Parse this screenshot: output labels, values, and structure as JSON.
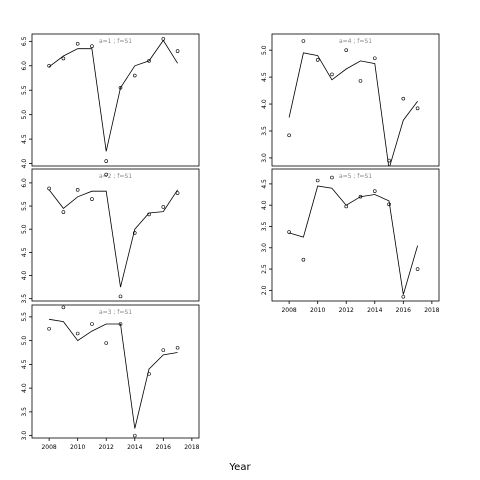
{
  "chart_data": {
    "type": "line",
    "xlabel": "Year",
    "ylabel": "",
    "title": "",
    "panels": [
      {
        "label": "a=1 ; f=S1",
        "xlim": [
          2006.8,
          2018.5
        ],
        "ylim": [
          3.95,
          6.65
        ],
        "yticks": [
          "4.0",
          "4.5",
          "5.0",
          "5.5",
          "6.0",
          "6.5"
        ],
        "xticks": [],
        "x": [
          2008,
          2009,
          2010,
          2011,
          2012,
          2013,
          2014,
          2015,
          2016,
          2017
        ],
        "fitted": [
          5.98,
          6.2,
          6.35,
          6.35,
          4.25,
          5.55,
          6.0,
          6.1,
          6.52,
          6.05
        ],
        "observed": [
          6.0,
          6.15,
          6.45,
          6.4,
          4.05,
          5.55,
          5.8,
          6.1,
          6.55,
          6.3
        ]
      },
      {
        "label": "a=2 ; f=S1",
        "xlim": [
          2006.8,
          2018.5
        ],
        "ylim": [
          3.45,
          6.3
        ],
        "yticks": [
          "3.5",
          "4.0",
          "4.5",
          "5.0",
          "5.5",
          "6.0"
        ],
        "xticks": [],
        "x": [
          2008,
          2009,
          2010,
          2011,
          2012,
          2013,
          2014,
          2015,
          2016,
          2017
        ],
        "fitted": [
          5.85,
          5.45,
          5.7,
          5.82,
          5.82,
          3.75,
          5.0,
          5.35,
          5.38,
          5.85
        ],
        "observed": [
          5.88,
          5.37,
          5.85,
          5.65,
          6.18,
          3.55,
          4.92,
          5.32,
          5.48,
          5.78
        ]
      },
      {
        "label": "a=3 ; f=S1",
        "xlim": [
          2006.8,
          2018.5
        ],
        "ylim": [
          2.95,
          5.75
        ],
        "yticks": [
          "3.0",
          "3.5",
          "4.0",
          "4.5",
          "5.0",
          "5.5"
        ],
        "xticks": [
          "2008",
          "2010",
          "2012",
          "2014",
          "2016",
          "2018"
        ],
        "x": [
          2008,
          2009,
          2010,
          2011,
          2012,
          2013,
          2014,
          2015,
          2016,
          2017
        ],
        "fitted": [
          5.45,
          5.4,
          5.0,
          5.2,
          5.35,
          5.35,
          3.15,
          4.4,
          4.7,
          4.75
        ],
        "observed": [
          5.25,
          5.7,
          5.15,
          5.35,
          4.95,
          5.35,
          3.0,
          4.3,
          4.8,
          4.85
        ]
      },
      {
        "label": "a=4 ; f=S1",
        "xlim": [
          2006.8,
          2018.5
        ],
        "ylim": [
          2.85,
          5.3
        ],
        "yticks": [
          "3.0",
          "3.5",
          "4.0",
          "4.5",
          "5.0"
        ],
        "xticks": [],
        "x": [
          2008,
          2009,
          2010,
          2011,
          2012,
          2013,
          2014,
          2015,
          2016,
          2017
        ],
        "fitted": [
          3.75,
          4.95,
          4.9,
          4.45,
          4.65,
          4.8,
          4.75,
          2.8,
          3.7,
          4.05
        ],
        "observed": [
          3.42,
          5.17,
          4.82,
          4.55,
          5.0,
          4.43,
          4.85,
          2.95,
          4.1,
          3.92
        ]
      },
      {
        "label": "a=5 ; f=S1",
        "xlim": [
          2006.8,
          2018.5
        ],
        "ylim": [
          1.75,
          4.85
        ],
        "yticks": [
          "2.0",
          "2.5",
          "3.0",
          "3.5",
          "4.0",
          "4.5"
        ],
        "xticks": [
          "2008",
          "2010",
          "2012",
          "2014",
          "2016",
          "2018"
        ],
        "x": [
          2008,
          2009,
          2010,
          2011,
          2012,
          2013,
          2014,
          2015,
          2016,
          2017
        ],
        "fitted": [
          3.35,
          3.25,
          4.45,
          4.4,
          4.0,
          4.2,
          4.25,
          4.1,
          1.9,
          3.05
        ],
        "observed": [
          3.37,
          2.72,
          4.58,
          4.65,
          3.97,
          4.2,
          4.33,
          4.02,
          1.85,
          2.5
        ]
      }
    ]
  }
}
